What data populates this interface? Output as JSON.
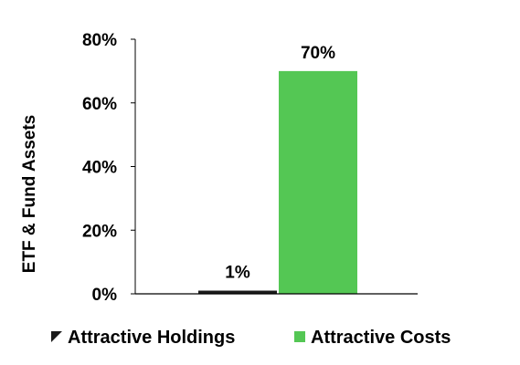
{
  "chart_data": {
    "type": "bar",
    "categories": [
      "Attractive Holdings",
      "Attractive Costs"
    ],
    "values": [
      1,
      70
    ],
    "data_labels": [
      "1%",
      "70%"
    ],
    "colors": [
      "#1a1a1a",
      "#54c754"
    ],
    "title": "",
    "xlabel": "",
    "ylabel": "ETF & Fund Assets",
    "ylim": [
      0,
      80
    ],
    "yticks": [
      0,
      20,
      40,
      60,
      80
    ],
    "ytick_labels": [
      "0%",
      "20%",
      "40%",
      "60%",
      "80%"
    ],
    "grid": false,
    "legend": {
      "position": "bottom",
      "entries": [
        {
          "name": "Attractive Holdings",
          "color": "#1a1a1a"
        },
        {
          "name": "Attractive Costs",
          "color": "#54c754"
        }
      ]
    }
  }
}
